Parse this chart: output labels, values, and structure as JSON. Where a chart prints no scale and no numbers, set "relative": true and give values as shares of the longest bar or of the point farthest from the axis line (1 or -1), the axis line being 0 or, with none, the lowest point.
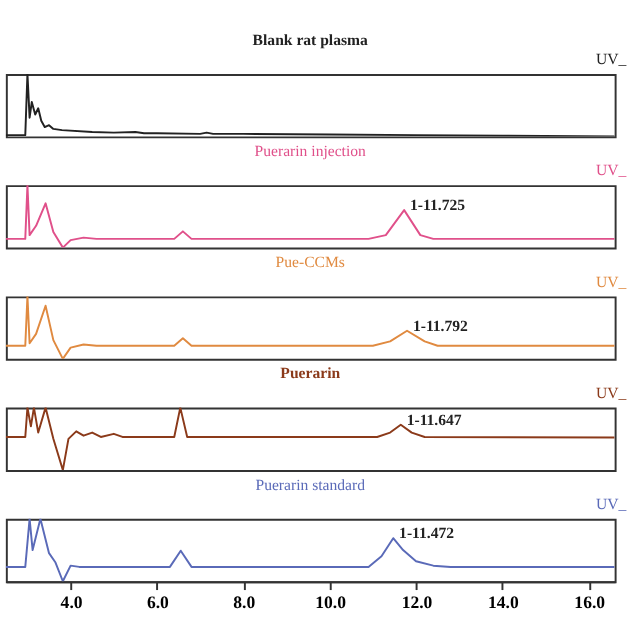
{
  "chart_data": [
    {
      "type": "line",
      "title": "Blank rat plasma",
      "relative": true,
      "xlim": [
        2.5,
        16.6
      ],
      "tick_labels": false,
      "annotations": [
        "UV_"
      ],
      "series": [
        {
          "color": "#222222",
          "x": [
            2.5,
            2.95,
            3.0,
            3.05,
            3.1,
            3.18,
            3.25,
            3.32,
            3.4,
            3.5,
            3.6,
            3.8,
            4.5,
            5.0,
            5.5,
            5.7,
            6.0,
            7.0,
            7.15,
            7.3,
            8.0,
            10.0,
            12.0,
            14.0,
            16.6
          ],
          "values": [
            0.02,
            0.02,
            1.0,
            0.3,
            0.55,
            0.35,
            0.45,
            0.25,
            0.15,
            0.18,
            0.12,
            0.1,
            0.07,
            0.06,
            0.07,
            0.05,
            0.05,
            0.04,
            0.06,
            0.04,
            0.04,
            0.03,
            0.02,
            0.01,
            0.0
          ]
        }
      ]
    },
    {
      "type": "line",
      "title": "Puerarin injection",
      "relative": true,
      "xlim": [
        2.5,
        16.6
      ],
      "tick_labels": false,
      "annotations": [
        {
          "text": "1-11.725",
          "x": 11.725,
          "y": 0.6
        },
        "UV_"
      ],
      "series": [
        {
          "color": "#e0508a",
          "x": [
            2.5,
            2.95,
            3.0,
            3.05,
            3.2,
            3.42,
            3.6,
            3.82,
            4.0,
            4.3,
            4.6,
            6.4,
            6.6,
            6.8,
            10.9,
            11.3,
            11.725,
            12.1,
            12.4,
            16.6
          ],
          "values": [
            0.14,
            0.14,
            1.0,
            0.2,
            0.35,
            0.71,
            0.25,
            0.0,
            0.12,
            0.16,
            0.14,
            0.14,
            0.26,
            0.14,
            0.14,
            0.2,
            0.6,
            0.2,
            0.14,
            0.14
          ]
        }
      ]
    },
    {
      "type": "line",
      "title": "Pue-CCMs",
      "relative": true,
      "xlim": [
        2.5,
        16.6
      ],
      "tick_labels": false,
      "annotations": [
        {
          "text": "1-11.792",
          "x": 11.792,
          "y": 0.45
        },
        "UV_"
      ],
      "series": [
        {
          "color": "#e08a40",
          "x": [
            2.5,
            2.95,
            3.0,
            3.05,
            3.2,
            3.42,
            3.6,
            3.82,
            4.0,
            4.3,
            4.6,
            6.4,
            6.6,
            6.8,
            11.0,
            11.4,
            11.792,
            12.2,
            12.5,
            16.6
          ],
          "values": [
            0.21,
            0.21,
            1.0,
            0.25,
            0.4,
            0.85,
            0.3,
            0.0,
            0.18,
            0.23,
            0.21,
            0.21,
            0.33,
            0.21,
            0.21,
            0.28,
            0.45,
            0.28,
            0.21,
            0.21
          ]
        }
      ]
    },
    {
      "type": "line",
      "title": "Puerarin",
      "relative": true,
      "xlim": [
        2.5,
        16.6
      ],
      "tick_labels": false,
      "annotations": [
        {
          "text": "1-11.647",
          "x": 11.647,
          "y": 0.725
        },
        "UV_"
      ],
      "series": [
        {
          "color": "#8b3a1a",
          "x": [
            2.5,
            2.95,
            3.0,
            3.08,
            3.15,
            3.25,
            3.42,
            3.6,
            3.82,
            3.95,
            4.13,
            4.3,
            4.5,
            4.7,
            5.0,
            5.2,
            6.4,
            6.54,
            6.7,
            11.1,
            11.4,
            11.647,
            11.9,
            12.2,
            16.6
          ],
          "values": [
            0.53,
            0.53,
            1.0,
            0.7,
            1.0,
            0.6,
            1.0,
            0.5,
            0.0,
            0.5,
            0.62,
            0.55,
            0.6,
            0.53,
            0.58,
            0.53,
            0.53,
            1.0,
            0.53,
            0.53,
            0.6,
            0.725,
            0.6,
            0.53,
            0.52
          ]
        }
      ]
    },
    {
      "type": "line",
      "title": "Puerarin standard",
      "relative": true,
      "xlim": [
        2.5,
        16.6
      ],
      "tick_labels": "x",
      "annotations": [
        {
          "text": "1-11.472",
          "x": 11.472,
          "y": 0.69
        },
        "UV_"
      ],
      "xticks": [
        {
          "value": 4,
          "label": "4.0"
        },
        {
          "value": 6,
          "label": "6.0"
        },
        {
          "value": 8,
          "label": "8.0"
        },
        {
          "value": 10,
          "label": "10.0"
        },
        {
          "value": 12,
          "label": "12.0"
        },
        {
          "value": 14,
          "label": "14.0"
        },
        {
          "value": 16,
          "label": "16.0"
        }
      ],
      "series": [
        {
          "color": "#5a6ab8",
          "x": [
            2.5,
            2.95,
            3.05,
            3.12,
            3.3,
            3.5,
            3.65,
            3.82,
            4.0,
            4.2,
            6.3,
            6.55,
            6.8,
            10.9,
            11.2,
            11.472,
            11.7,
            12.0,
            12.4,
            12.8,
            16.6
          ],
          "values": [
            0.23,
            0.23,
            1.0,
            0.5,
            1.0,
            0.45,
            0.3,
            0.0,
            0.25,
            0.23,
            0.23,
            0.49,
            0.23,
            0.23,
            0.4,
            0.69,
            0.5,
            0.32,
            0.25,
            0.23,
            0.23
          ]
        }
      ]
    }
  ]
}
